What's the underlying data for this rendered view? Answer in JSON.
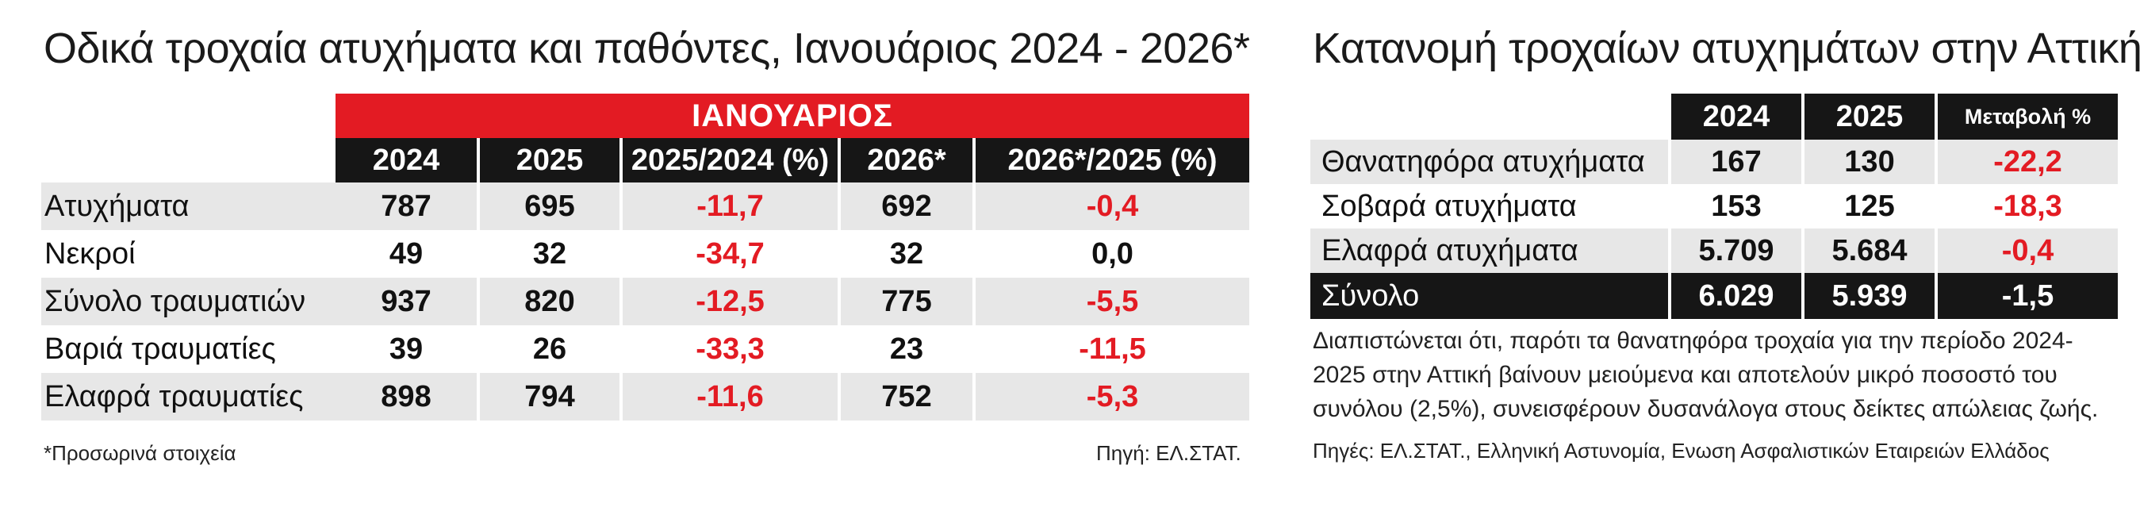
{
  "chart_data": [
    {
      "type": "table",
      "title": "Οδικά τροχαία ατυχήματα και παθόντες, Ιανουάριος 2024 - 2026*",
      "group_header": "ΙΑΝΟΥΑΡΙΟΣ",
      "columns": [
        "2024",
        "2025",
        "2025/2024 (%)",
        "2026*",
        "2026*/2025 (%)"
      ],
      "rows": [
        {
          "label": "Ατυχήματα",
          "values": [
            "787",
            "695",
            "-11,7",
            "692",
            "-0,4"
          ]
        },
        {
          "label": "Νεκροί",
          "values": [
            "49",
            "32",
            "-34,7",
            "32",
            "0,0"
          ]
        },
        {
          "label": "Σύνολο τραυματιών",
          "values": [
            "937",
            "820",
            "-12,5",
            "775",
            "-5,5"
          ]
        },
        {
          "label": "Βαριά τραυματίες",
          "values": [
            "39",
            "26",
            "-33,3",
            "23",
            "-11,5"
          ]
        },
        {
          "label": "Ελαφρά τραυματίες",
          "values": [
            "898",
            "794",
            "-11,6",
            "752",
            "-5,3"
          ]
        }
      ],
      "footnote": "*Προσωρινά στοιχεία",
      "source": "Πηγή: ΕΛ.ΣΤΑΤ."
    },
    {
      "type": "table",
      "title": "Κατανομή τροχαίων ατυχημάτων στην Αττική",
      "columns": [
        "2024",
        "2025",
        "Μεταβολή %"
      ],
      "rows": [
        {
          "label": "Θανατηφόρα ατυχήματα",
          "values": [
            "167",
            "130",
            "-22,2"
          ]
        },
        {
          "label": "Σοβαρά ατυχήματα",
          "values": [
            "153",
            "125",
            "-18,3"
          ]
        },
        {
          "label": "Ελαφρά ατυχήματα",
          "values": [
            "5.709",
            "5.684",
            "-0,4"
          ]
        }
      ],
      "total": {
        "label": "Σύνολο",
        "values": [
          "6.029",
          "5.939",
          "-1,5"
        ]
      },
      "description": "Διαπιστώνεται ότι, παρότι τα θανατηφόρα τροχαία για την περίοδο 2024-2025 στην Αττική βαίνουν μειούμενα και αποτελούν μικρό ποσοστό του συνόλου (2,5%), συνεισφέρουν δυσανάλογα στους δείκτες απώλειας ζωής.",
      "sources": "Πηγές: ΕΛ.ΣΤΑΤ., Ελληνική Αστυνομία, Ενωση Ασφαλιστικών Εταιρειών Ελλάδος"
    }
  ],
  "colors": {
    "accent_red": "#e31b23",
    "header_black": "#161616",
    "row_shade": "#e7e7e7"
  }
}
